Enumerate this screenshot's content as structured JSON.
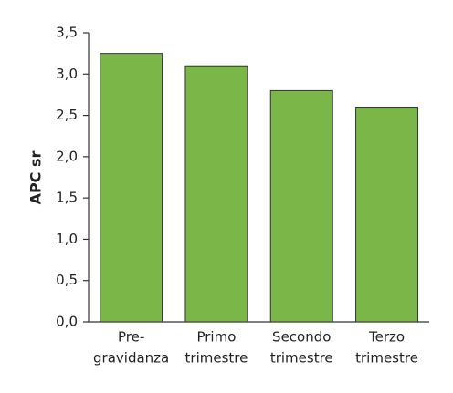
{
  "chart_data": {
    "type": "bar",
    "y_label": "APC sr",
    "categories": [
      [
        "Pre-",
        "gravidanza"
      ],
      [
        "Primo",
        "trimestre"
      ],
      [
        "Secondo",
        "trimestre"
      ],
      [
        "Terzo",
        "trimestre"
      ]
    ],
    "values": [
      3.25,
      3.1,
      2.8,
      2.6
    ],
    "color": "#7ab648",
    "ylim": [
      0,
      3.5
    ],
    "yticks": [
      {
        "value": 0,
        "label": "0,0"
      },
      {
        "value": 0.5,
        "label": "0,5"
      },
      {
        "value": 1,
        "label": "1,0"
      },
      {
        "value": 1.5,
        "label": "1,5"
      },
      {
        "value": 2,
        "label": "2,0"
      },
      {
        "value": 2.5,
        "label": "2,5"
      },
      {
        "value": 3,
        "label": "3,0"
      },
      {
        "value": 3.5,
        "label": "3,5"
      }
    ],
    "grid": false
  }
}
